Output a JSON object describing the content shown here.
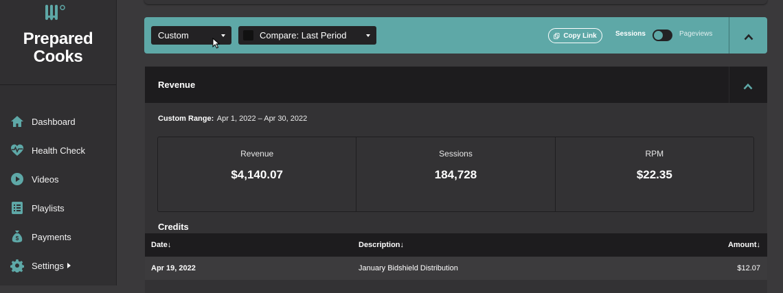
{
  "sidebar": {
    "brand": "Prepared Cooks",
    "items": [
      {
        "label": "Dashboard",
        "icon": "home-icon"
      },
      {
        "label": "Health Check",
        "icon": "heartbeat-icon"
      },
      {
        "label": "Videos",
        "icon": "play-icon"
      },
      {
        "label": "Playlists",
        "icon": "list-icon"
      },
      {
        "label": "Payments",
        "icon": "money-bag-icon"
      },
      {
        "label": "Settings",
        "icon": "gear-icon"
      }
    ]
  },
  "filters": {
    "range_select": "Custom",
    "compare_select": "Compare: Last Period",
    "copy_link": "Copy Link",
    "toggle_left": "Sessions",
    "toggle_right": "Pageviews"
  },
  "revenue": {
    "title": "Revenue",
    "range_label": "Custom Range:",
    "range_value": "Apr 1, 2022 – Apr 30, 2022",
    "stats": [
      {
        "label": "Revenue",
        "value": "$4,140.07"
      },
      {
        "label": "Sessions",
        "value": "184,728"
      },
      {
        "label": "RPM",
        "value": "$22.35"
      }
    ]
  },
  "credits": {
    "title": "Credits",
    "columns": {
      "date": "Date↓",
      "description": "Description↓",
      "amount": "Amount↓"
    },
    "rows": [
      {
        "date": "Apr 19, 2022",
        "description": "January Bidshield Distribution",
        "amount": "$12.07"
      }
    ]
  },
  "colors": {
    "accent": "#5ea8a7",
    "dark": "#1d1c1e",
    "sidebar": "#302f31"
  }
}
